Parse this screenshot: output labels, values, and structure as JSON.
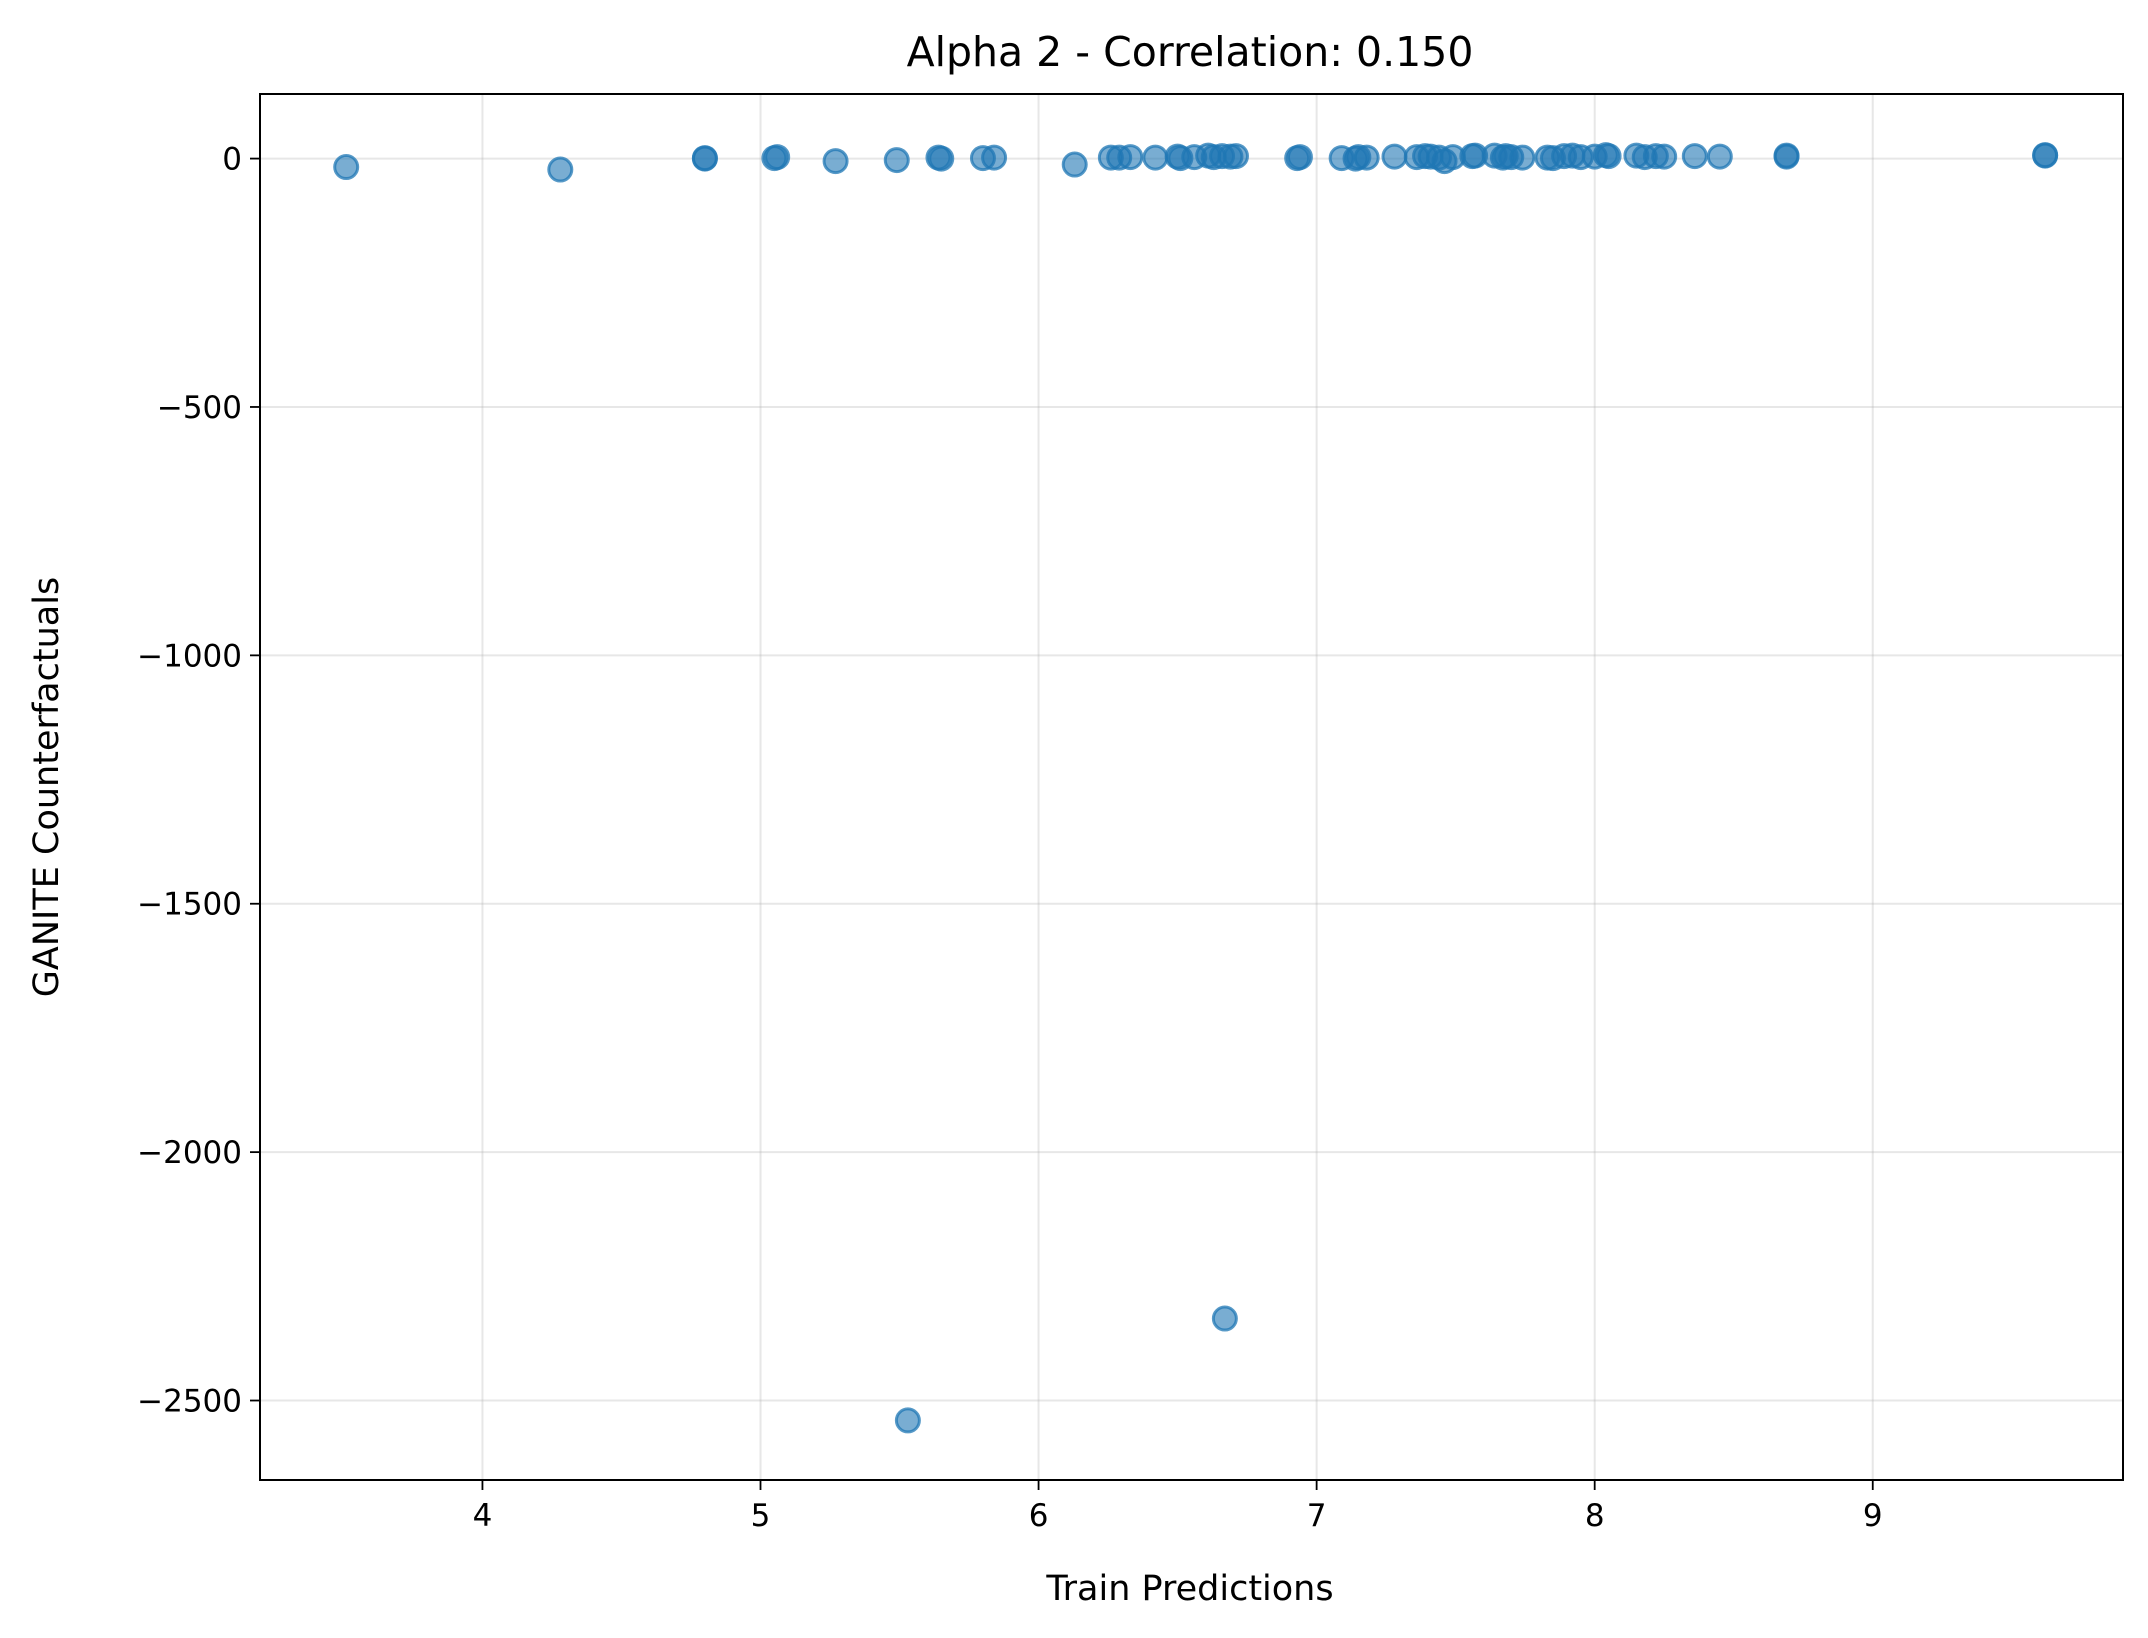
{
  "chart_data": {
    "type": "scatter",
    "title": "Alpha 2 - Correlation: 0.150",
    "xlabel": "Train Predictions",
    "ylabel": "GANITE Counterfactuals",
    "xlim": [
      3.2,
      9.9
    ],
    "ylim": [
      -2660,
      130
    ],
    "xticks": [
      4,
      5,
      6,
      7,
      8,
      9
    ],
    "yticks": [
      0,
      -500,
      -1000,
      -1500,
      -2000,
      -2500
    ],
    "ytick_labels": [
      "0",
      "−500",
      "−1000",
      "−1500",
      "−2000",
      "−2500"
    ],
    "grid": true,
    "marker_color": "#1f77b4",
    "marker_alpha": 0.6,
    "x": [
      3.51,
      4.28,
      4.8,
      4.8,
      5.06,
      5.05,
      5.27,
      5.49,
      5.64,
      5.65,
      5.8,
      5.84,
      6.13,
      6.26,
      6.29,
      6.33,
      6.42,
      6.5,
      6.51,
      6.56,
      6.61,
      6.63,
      6.66,
      6.69,
      6.71,
      6.93,
      6.94,
      7.09,
      7.15,
      7.14,
      7.18,
      7.28,
      7.36,
      7.39,
      7.41,
      7.44,
      7.46,
      7.49,
      7.56,
      7.57,
      7.64,
      7.67,
      7.68,
      7.7,
      7.74,
      7.83,
      7.85,
      7.89,
      7.92,
      7.95,
      8.0,
      8.05,
      8.04,
      8.15,
      8.18,
      8.22,
      8.25,
      8.36,
      8.45,
      8.69,
      8.69,
      9.62,
      9.62,
      5.53,
      6.67
    ],
    "y": [
      -17,
      -22,
      0,
      1,
      3,
      1,
      -5,
      -3,
      2,
      0,
      1,
      2,
      -12,
      2,
      2,
      3,
      2,
      4,
      1,
      3,
      6,
      3,
      5,
      4,
      5,
      1,
      3,
      1,
      3,
      0,
      2,
      4,
      3,
      5,
      4,
      2,
      -5,
      3,
      5,
      6,
      6,
      2,
      5,
      3,
      2,
      2,
      1,
      5,
      6,
      3,
      4,
      5,
      7,
      6,
      3,
      5,
      4,
      5,
      4,
      4,
      6,
      7,
      6,
      -2540,
      -2335
    ]
  }
}
